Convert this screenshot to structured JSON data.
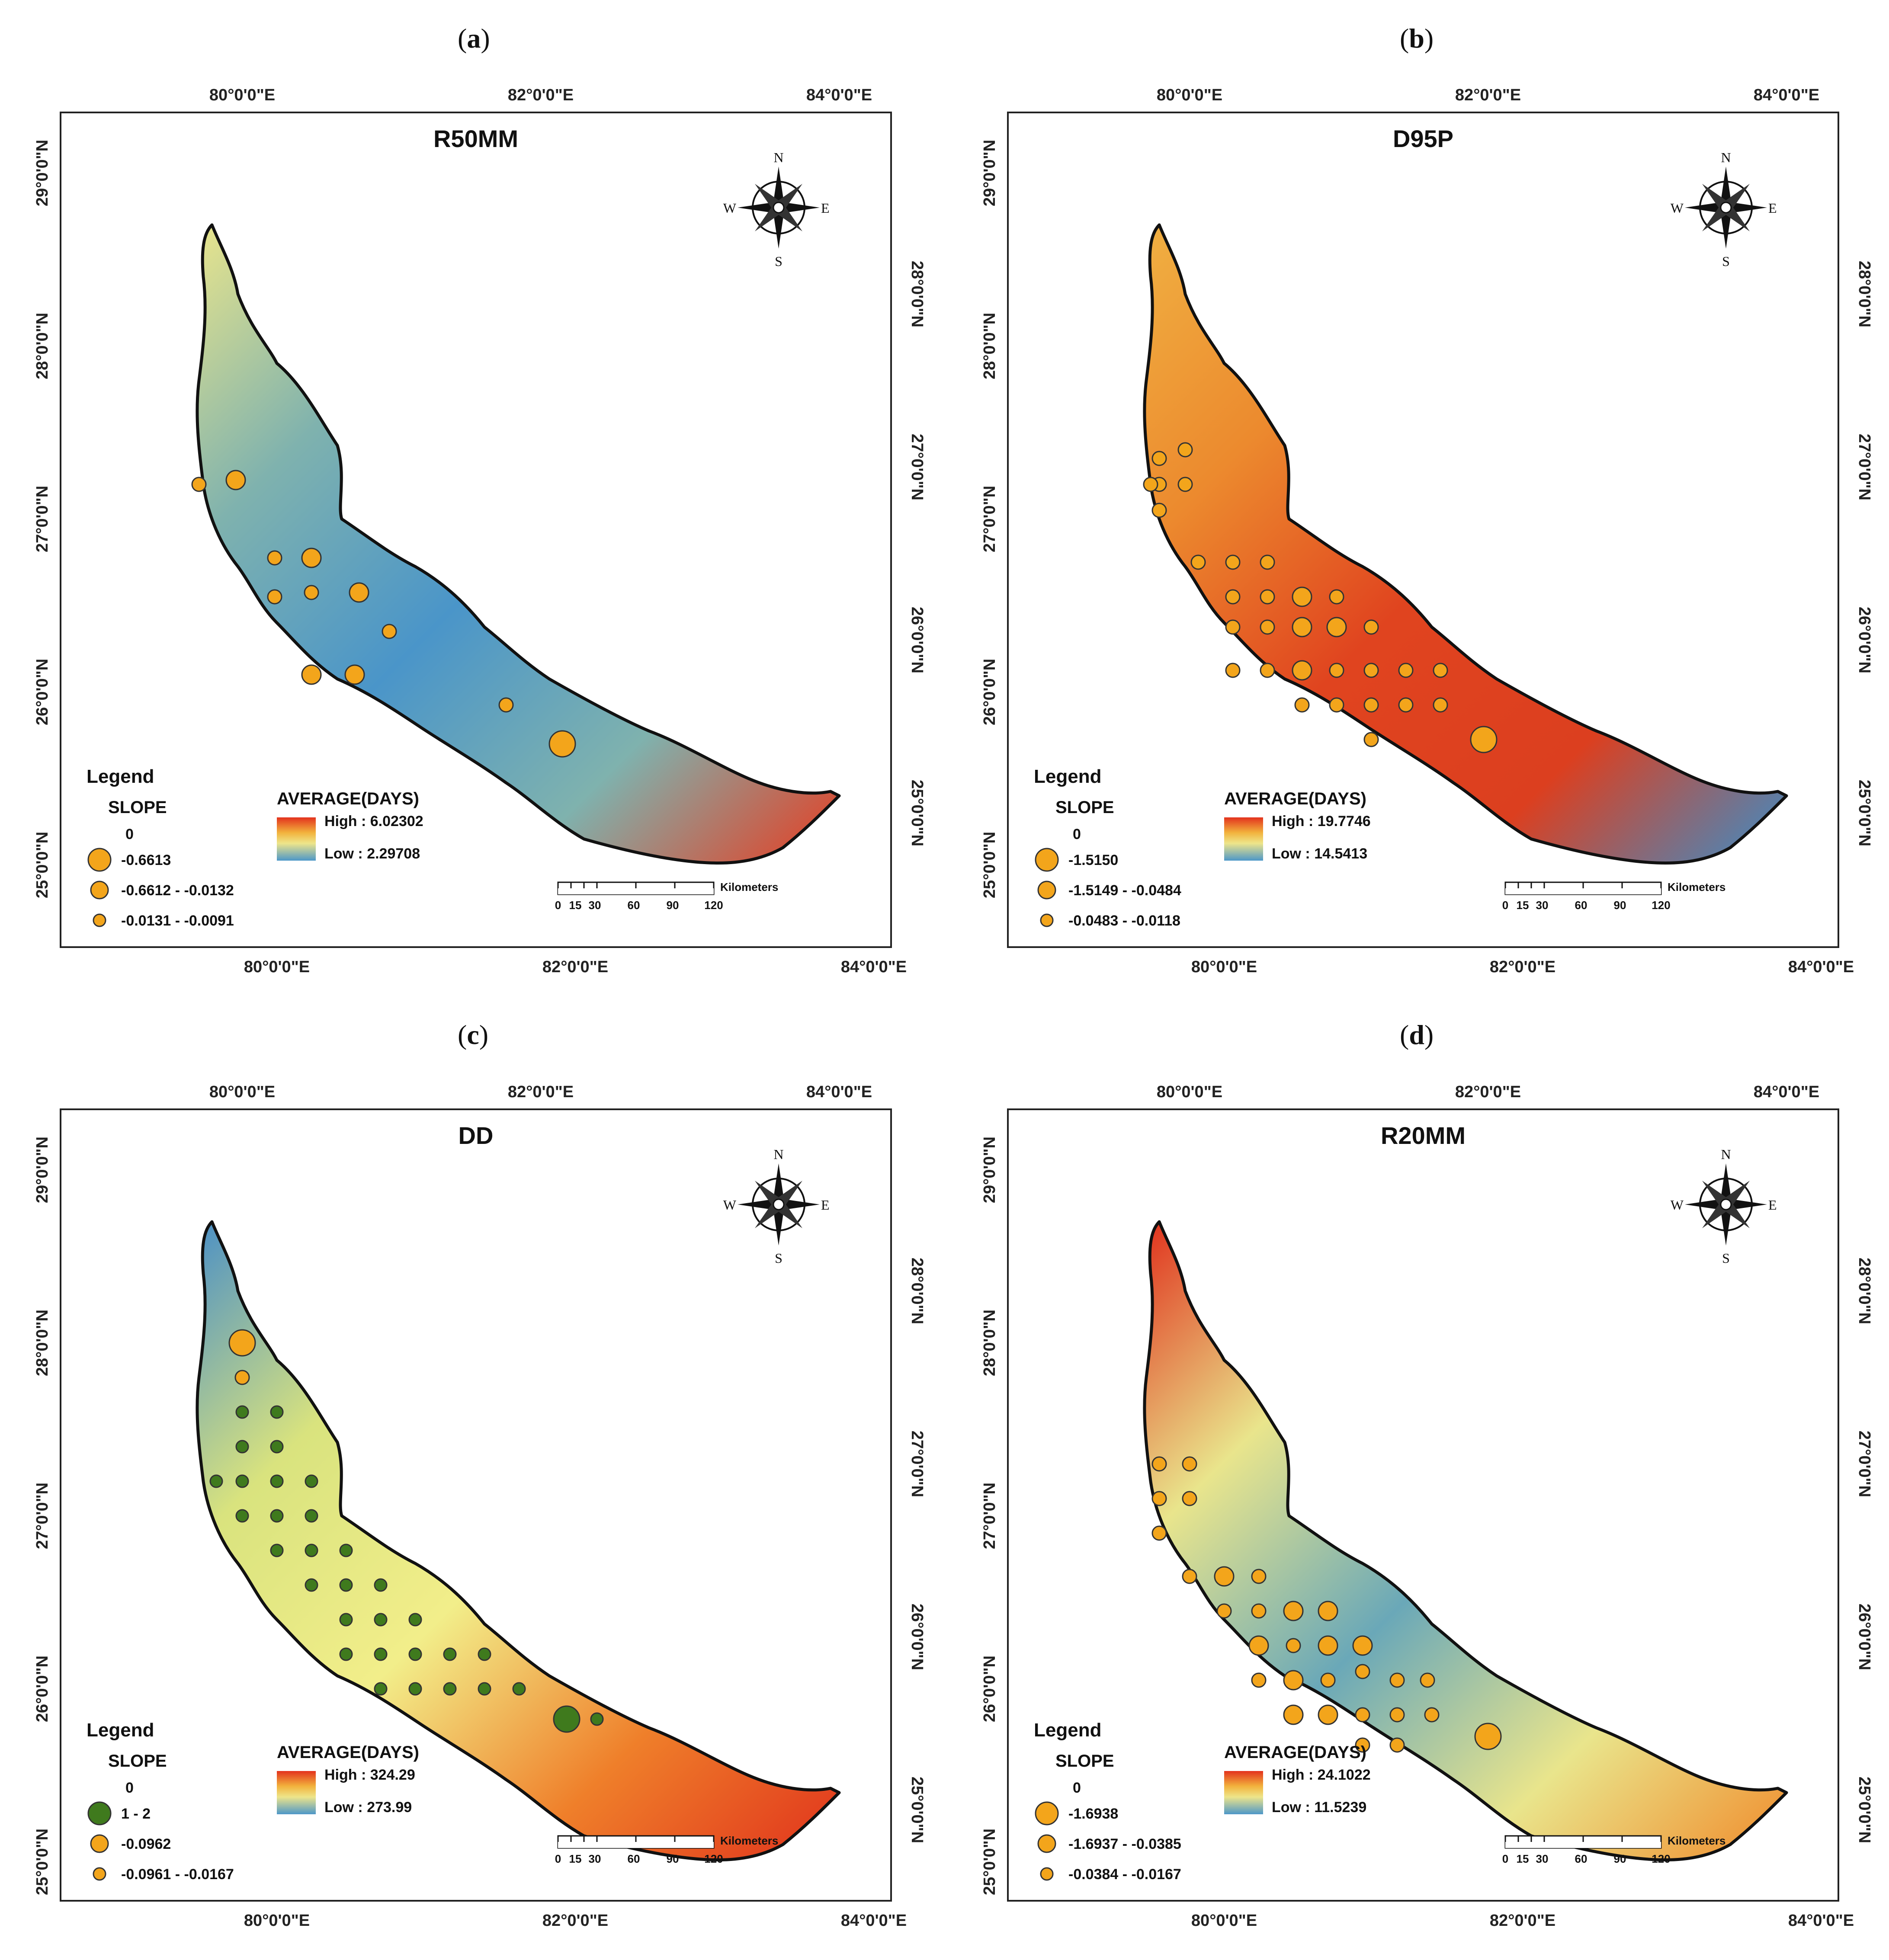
{
  "figure": {
    "panels": [
      {
        "label": "(a)",
        "label_letter": "a",
        "title": "R50MM",
        "top_ticks": [
          "80°0'0\"E",
          "82°0'0\"E",
          "84°0'0\"E"
        ],
        "bottom_ticks": [
          "80°0'0\"E",
          "82°0'0\"E",
          "84°0'0\"E"
        ],
        "left_ticks": [
          "29°0'0\"N",
          "28°0'0\"N",
          "27°0'0\"N",
          "26°0'0\"N",
          "25°0'0\"N"
        ],
        "right_ticks": [
          "28°0'0\"N",
          "27°0'0\"N",
          "26°0'0\"N",
          "25°0'0\"N"
        ],
        "legend": {
          "heading": "Legend",
          "slope_title": "SLOPE",
          "slope_zero": "0",
          "slope_classes": [
            {
              "label": "-0.6613",
              "color": "#f3a51b"
            },
            {
              "label": "-0.6612 - -0.0132",
              "color": "#f3a51b"
            },
            {
              "label": "-0.0131 - -0.0091",
              "color": "#f3a51b"
            }
          ],
          "average_title": "AVERAGE(DAYS)",
          "high": "High : 6.02302",
          "low": "Low : 2.29708"
        },
        "surface_colors": {
          "northwest": "#e9e58c",
          "mid_nw": "#7fb2ae",
          "mid": "#4a95c9",
          "southeast": "#e83b1f",
          "hotspot": "#e53e1c"
        },
        "stations": 12
      },
      {
        "label": "(b)",
        "label_letter": "b",
        "title": "D95P",
        "top_ticks": [
          "80°0'0\"E",
          "82°0'0\"E",
          "84°0'0\"E"
        ],
        "bottom_ticks": [
          "80°0'0\"E",
          "82°0'0\"E",
          "84°0'0\"E"
        ],
        "left_ticks": [
          "29°0'0\"N",
          "28°0'0\"N",
          "27°0'0\"N",
          "26°0'0\"N",
          "25°0'0\"N"
        ],
        "right_ticks": [
          "28°0'0\"N",
          "27°0'0\"N",
          "26°0'0\"N",
          "25°0'0\"N"
        ],
        "legend": {
          "heading": "Legend",
          "slope_title": "SLOPE",
          "slope_zero": "0",
          "slope_classes": [
            {
              "label": "-1.5150",
              "color": "#f3a51b"
            },
            {
              "label": "-1.5149 - -0.0484",
              "color": "#f3a51b"
            },
            {
              "label": "-0.0483 - -0.0118",
              "color": "#f3a51b"
            }
          ],
          "average_title": "AVERAGE(DAYS)",
          "high": "High : 19.7746",
          "low": "Low : 14.5413"
        },
        "surface_colors": {
          "northwest": "#f0b042",
          "mid_nw": "#ec8a2e",
          "mid": "#dc3f1f",
          "southeast": "#3a8fca",
          "hotspot": "#e0441f"
        },
        "stations": 32
      },
      {
        "label": "(c)",
        "label_letter": "c",
        "title": "DD",
        "top_ticks": [
          "80°0'0\"E",
          "82°0'0\"E",
          "84°0'0\"E"
        ],
        "bottom_ticks": [
          "80°0'0\"E",
          "82°0'0\"E",
          "84°0'0\"E"
        ],
        "left_ticks": [
          "29°0'0\"N",
          "28°0'0\"N",
          "27°0'0\"N",
          "26°0'0\"N",
          "25°0'0\"N"
        ],
        "right_ticks": [
          "28°0'0\"N",
          "27°0'0\"N",
          "26°0'0\"N",
          "25°0'0\"N"
        ],
        "legend": {
          "heading": "Legend",
          "slope_title": "SLOPE",
          "slope_zero": "0",
          "slope_classes": [
            {
              "label": "1 - 2",
              "color": "#3f7a1d"
            },
            {
              "label": "-0.0962",
              "color": "#f3a51b"
            },
            {
              "label": "-0.0961 - -0.0167",
              "color": "#f3a51b"
            }
          ],
          "average_title": "AVERAGE(DAYS)",
          "high": "High : 324.29",
          "low": "Low : 273.99"
        },
        "surface_colors": {
          "northwest": "#4a8fc6",
          "mid_nw": "#d9e37e",
          "mid": "#f2ee8a",
          "southeast": "#e0321c",
          "hotspot": "#ef7f2a"
        },
        "stations": 34
      },
      {
        "label": "(d)",
        "label_letter": "d",
        "title": "R20MM",
        "top_ticks": [
          "80°0'0\"E",
          "82°0'0\"E",
          "84°0'0\"E"
        ],
        "bottom_ticks": [
          "80°0'0\"E",
          "82°0'0\"E",
          "84°0'0\"E"
        ],
        "left_ticks": [
          "29°0'0\"N",
          "28°0'0\"N",
          "27°0'0\"N",
          "26°0'0\"N",
          "25°0'0\"N"
        ],
        "right_ticks": [
          "28°0'0\"N",
          "27°0'0\"N",
          "26°0'0\"N",
          "25°0'0\"N"
        ],
        "legend": {
          "heading": "Legend",
          "slope_title": "SLOPE",
          "slope_zero": "0",
          "slope_classes": [
            {
              "label": "-1.6938",
              "color": "#f3a51b"
            },
            {
              "label": "-1.6937 - -0.0385",
              "color": "#f3a51b"
            },
            {
              "label": "-0.0384 - -0.0167",
              "color": "#f3a51b"
            }
          ],
          "average_title": "AVERAGE(DAYS)",
          "high": "High : 24.1022",
          "low": "Low : 11.5239"
        },
        "surface_colors": {
          "northwest": "#e0301c",
          "mid_nw": "#e9e58c",
          "mid": "#6aa8b8",
          "southeast": "#f08a2a",
          "hotspot": "#e53e1c"
        },
        "stations": 30
      }
    ],
    "scale_bar": {
      "ticks": [
        "0",
        "15",
        "30",
        "60",
        "90",
        "120"
      ],
      "unit": "Kilometers"
    },
    "compass": {
      "n": "N",
      "s": "S",
      "e": "E",
      "w": "W"
    }
  }
}
